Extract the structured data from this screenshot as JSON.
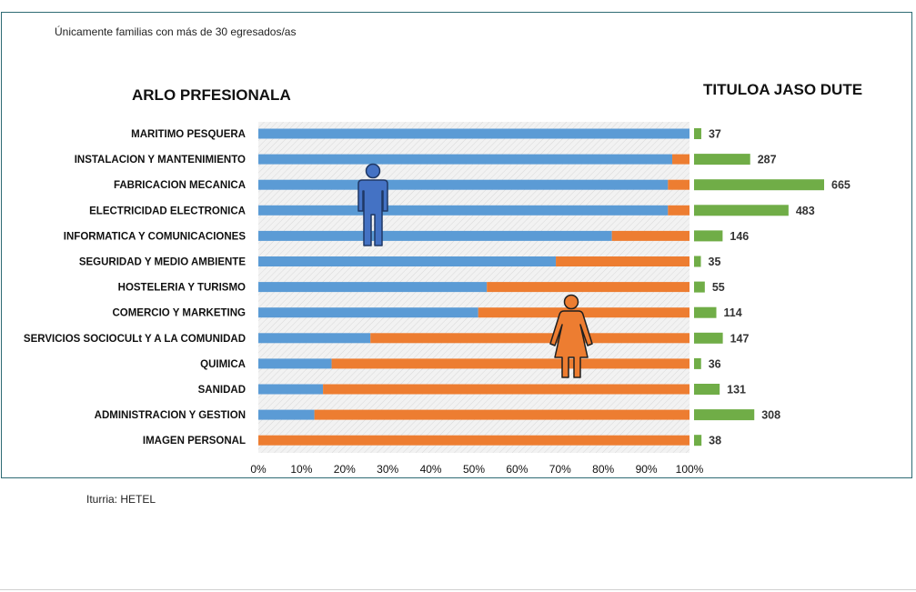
{
  "note": "Únicamente familias con más de 30 egresados/as",
  "left_title": "ARLO PRFESIONALA",
  "right_title": "TITULOA JASO DUTE",
  "source": "Iturria: HETEL",
  "colors": {
    "male": "#5b9bd5",
    "female": "#ed7d31",
    "total": "#70ad47",
    "frame": "#2e6b74"
  },
  "icons": [
    "male-person-icon",
    "female-person-icon"
  ],
  "chart_data": [
    {
      "type": "bar",
      "orientation": "horizontal",
      "stacked": "100%",
      "categories": [
        "MARITIMO PESQUERA",
        "INSTALACION Y MANTENIMIENTO",
        "FABRICACION MECANICA",
        "ELECTRICIDAD ELECTRONICA",
        "INFORMATICA Y  COMUNICACIONES",
        "SEGURIDAD Y MEDIO AMBIENTE",
        "HOSTELERIA Y TURISMO",
        "COMERCIO Y MARKETING",
        "SERVICIOS SOCIOCULt Y A LA COMUNIDAD",
        "QUIMICA",
        "SANIDAD",
        "ADMINISTRACION Y GESTION",
        "IMAGEN PERSONAL"
      ],
      "series": [
        {
          "values": [
            100,
            96,
            95,
            95,
            82,
            69,
            53,
            51,
            26,
            17,
            15,
            13,
            0
          ]
        },
        {
          "values": [
            0,
            4,
            5,
            5,
            18,
            31,
            47,
            49,
            74,
            83,
            85,
            87,
            100
          ]
        }
      ],
      "xlim": [
        0,
        100
      ],
      "x_ticks": [
        "0%",
        "10%",
        "20%",
        "30%",
        "40%",
        "50%",
        "60%",
        "70%",
        "80%",
        "90%",
        "100%"
      ],
      "title": "ARLO PRFESIONALA"
    },
    {
      "type": "bar",
      "orientation": "horizontal",
      "categories": [
        "MARITIMO PESQUERA",
        "INSTALACION Y MANTENIMIENTO",
        "FABRICACION MECANICA",
        "ELECTRICIDAD ELECTRONICA",
        "INFORMATICA Y  COMUNICACIONES",
        "SEGURIDAD Y MEDIO AMBIENTE",
        "HOSTELERIA Y TURISMO",
        "COMERCIO Y MARKETING",
        "SERVICIOS SOCIOCULt Y A LA COMUNIDAD",
        "QUIMICA",
        "SANIDAD",
        "ADMINISTRACION Y GESTION",
        "IMAGEN PERSONAL"
      ],
      "values": [
        37,
        287,
        665,
        483,
        146,
        35,
        55,
        114,
        147,
        36,
        131,
        308,
        38
      ],
      "title": "TITULOA JASO DUTE"
    }
  ]
}
